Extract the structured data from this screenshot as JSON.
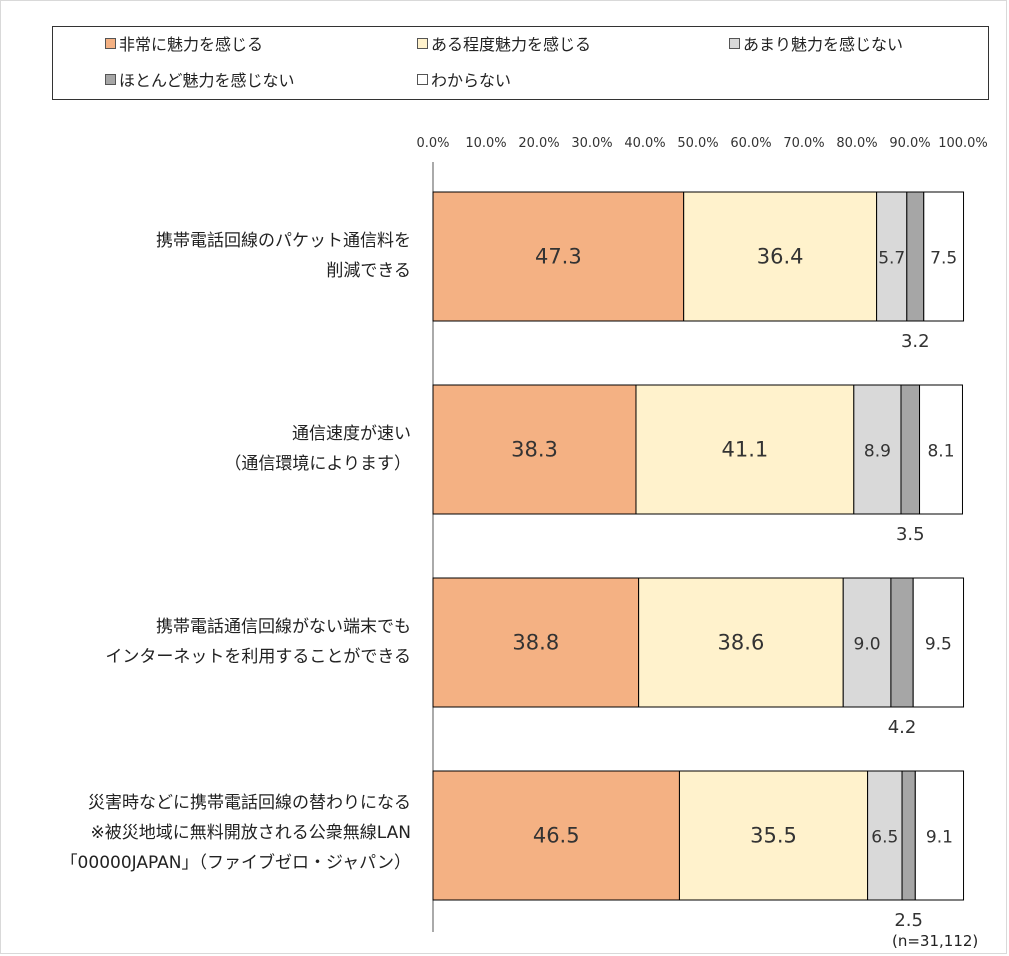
{
  "chart_data": {
    "type": "bar",
    "orientation": "horizontal",
    "stacked": true,
    "xlim": [
      0,
      100
    ],
    "x_tick_labels": [
      "0.0%",
      "10.0%",
      "20.0%",
      "30.0%",
      "40.0%",
      "50.0%",
      "60.0%",
      "70.0%",
      "80.0%",
      "90.0%",
      "100.0%"
    ],
    "legend_placement": "top",
    "categories": [
      "携帯電話回線のパケット通信料を\n削減できる",
      "通信速度が速い\n（通信環境によります）",
      "携帯電話通信回線がない端末でも\nインターネットを利用することができる",
      "災害時などに携帯電話回線の替わりになる\n※被災地域に無料開放される公衆無線LAN\n「00000JAPAN」（ファイブゼロ・ジャパン）"
    ],
    "series": [
      {
        "name": "非常に魅力を感じる",
        "color": "#f4b183",
        "values": [
          47.3,
          38.3,
          38.8,
          46.5
        ]
      },
      {
        "name": "ある程度魅力を感じる",
        "color": "#fff2cc",
        "values": [
          36.4,
          41.1,
          38.6,
          35.5
        ]
      },
      {
        "name": "あまり魅力を感じない",
        "color": "#d9d9d9",
        "values": [
          5.7,
          8.9,
          9.0,
          6.5
        ]
      },
      {
        "name": "ほとんど魅力を感じない",
        "color": "#a6a6a6",
        "values": [
          3.2,
          3.5,
          4.2,
          2.5
        ]
      },
      {
        "name": "わからない",
        "color": "#ffffff",
        "values": [
          7.5,
          8.1,
          9.5,
          9.1
        ]
      }
    ],
    "data_labels": [
      [
        "47.3",
        "36.4",
        "5.7",
        "3.2",
        "7.5"
      ],
      [
        "38.3",
        "41.1",
        "8.9",
        "3.5",
        "8.1"
      ],
      [
        "38.8",
        "38.6",
        "9.0",
        "4.2",
        "9.5"
      ],
      [
        "46.5",
        "35.5",
        "6.5",
        "2.5",
        "9.1"
      ]
    ],
    "grid": false,
    "note": "(n=31,112)"
  }
}
